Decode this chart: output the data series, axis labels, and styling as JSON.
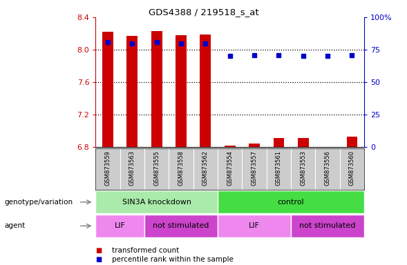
{
  "title": "GDS4388 / 219518_s_at",
  "samples": [
    "GSM873559",
    "GSM873563",
    "GSM873555",
    "GSM873558",
    "GSM873562",
    "GSM873554",
    "GSM873557",
    "GSM873561",
    "GSM873553",
    "GSM873556",
    "GSM873560"
  ],
  "transformed_count": [
    8.22,
    8.17,
    8.23,
    8.18,
    8.19,
    6.815,
    6.845,
    6.915,
    6.915,
    6.805,
    6.93
  ],
  "percentile_rank": [
    81,
    80,
    81,
    80,
    80,
    70,
    71,
    71,
    70,
    70,
    71
  ],
  "ylim_left": [
    6.8,
    8.4
  ],
  "ylim_right": [
    0,
    100
  ],
  "yticks_left": [
    6.8,
    7.2,
    7.6,
    8.0,
    8.4
  ],
  "yticks_right": [
    0,
    25,
    50,
    75,
    100
  ],
  "bar_color": "#cc0000",
  "dot_color": "#0000cc",
  "bar_bottom": 6.8,
  "groups": [
    {
      "label": "SIN3A knockdown",
      "start": 0,
      "end": 5,
      "color": "#aaeaaa"
    },
    {
      "label": "control",
      "start": 5,
      "end": 11,
      "color": "#44dd44"
    }
  ],
  "agents": [
    {
      "label": "LIF",
      "start": 0,
      "end": 2,
      "color": "#ee88ee"
    },
    {
      "label": "not stimulated",
      "start": 2,
      "end": 5,
      "color": "#cc44cc"
    },
    {
      "label": "LIF",
      "start": 5,
      "end": 8,
      "color": "#ee88ee"
    },
    {
      "label": "not stimulated",
      "start": 8,
      "end": 11,
      "color": "#cc44cc"
    }
  ],
  "genotype_label": "genotype/variation",
  "agent_label": "agent",
  "legend_items": [
    {
      "label": "transformed count",
      "color": "#cc0000"
    },
    {
      "label": "percentile rank within the sample",
      "color": "#0000cc"
    }
  ],
  "tick_color_left": "#cc0000",
  "tick_color_right": "#0000cc",
  "sample_bg": "#cccccc",
  "grid_dotted_color": "#000000",
  "spine_color": "#000000",
  "bar_width": 0.45
}
